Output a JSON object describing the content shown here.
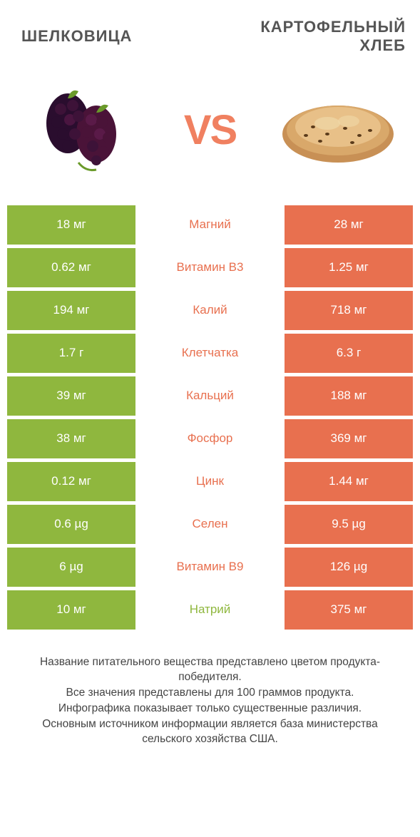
{
  "colors": {
    "green": "#8fb73e",
    "orange": "#e8704f",
    "white": "#ffffff",
    "vs": "#f08060",
    "title": "#555555",
    "footer": "#444444"
  },
  "header": {
    "left_title": "ШЕЛКОВИЦА",
    "right_title": "КАРТОФЕЛЬНЫЙ\nХЛЕБ",
    "vs_text": "VS"
  },
  "table": {
    "left_color": "#8fb73e",
    "right_color": "#e8704f",
    "rows": [
      {
        "left": "18 мг",
        "mid": "Магний",
        "right": "28 мг",
        "winner": "right"
      },
      {
        "left": "0.62 мг",
        "mid": "Витамин B3",
        "right": "1.25 мг",
        "winner": "right"
      },
      {
        "left": "194 мг",
        "mid": "Калий",
        "right": "718 мг",
        "winner": "right"
      },
      {
        "left": "1.7 г",
        "mid": "Клетчатка",
        "right": "6.3 г",
        "winner": "right"
      },
      {
        "left": "39 мг",
        "mid": "Кальций",
        "right": "188 мг",
        "winner": "right"
      },
      {
        "left": "38 мг",
        "mid": "Фосфор",
        "right": "369 мг",
        "winner": "right"
      },
      {
        "left": "0.12 мг",
        "mid": "Цинк",
        "right": "1.44 мг",
        "winner": "right"
      },
      {
        "left": "0.6 µg",
        "mid": "Селен",
        "right": "9.5 µg",
        "winner": "right"
      },
      {
        "left": "6 µg",
        "mid": "Витамин B9",
        "right": "126 µg",
        "winner": "right"
      },
      {
        "left": "10 мг",
        "mid": "Натрий",
        "right": "375 мг",
        "winner": "left"
      }
    ]
  },
  "footer": {
    "lines": [
      "Название питательного вещества представлено цветом продукта-победителя.",
      "Все значения представлены для 100 граммов продукта.",
      "Инфографика показывает только существенные различия.",
      "Основным источником информации является база министерства сельского хозяйства США."
    ]
  }
}
